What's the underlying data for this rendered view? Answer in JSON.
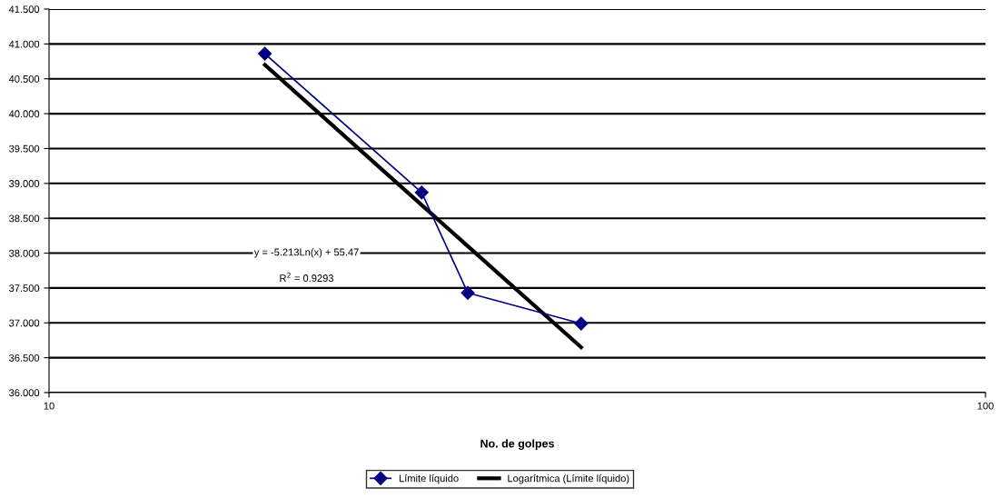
{
  "chart_data": {
    "type": "line",
    "xlabel": "No. de golpes",
    "log": "x",
    "xlim": [
      10,
      100
    ],
    "xticks": [
      10,
      100
    ],
    "ylim": [
      36,
      41.5
    ],
    "yticks": [
      {
        "value": 36,
        "label": "36.000"
      },
      {
        "value": 36.5,
        "label": "36.500"
      },
      {
        "value": 37,
        "label": "37.000"
      },
      {
        "value": 37.5,
        "label": "37.500"
      },
      {
        "value": 38,
        "label": "38.000"
      },
      {
        "value": 38.5,
        "label": "38.500"
      },
      {
        "value": 39,
        "label": "39.000"
      },
      {
        "value": 39.5,
        "label": "39.500"
      },
      {
        "value": 40,
        "label": "40.000"
      },
      {
        "value": 40.5,
        "label": "40.500"
      },
      {
        "value": 41,
        "label": "41.000"
      },
      {
        "value": 41.5,
        "label": "41.500"
      }
    ],
    "grid": "y",
    "legend": "bottom",
    "line_style": "solid",
    "series": [
      {
        "name": "Límite líquido",
        "color": "#000080",
        "marker": "diamond",
        "x": [
          17,
          25,
          28,
          37
        ],
        "values": [
          40.86,
          38.87,
          37.43,
          36.99
        ]
      },
      {
        "name": "Logarítmica (Límite líquido)",
        "color": "#000000",
        "marker": "none",
        "x": [
          17,
          25,
          28,
          37
        ],
        "values": [
          40.7,
          38.69,
          38.1,
          36.65
        ]
      }
    ],
    "annotations": [
      "y = -5.213Ln(x) + 55.47",
      "R$^{2}$ = 0.9293"
    ]
  }
}
